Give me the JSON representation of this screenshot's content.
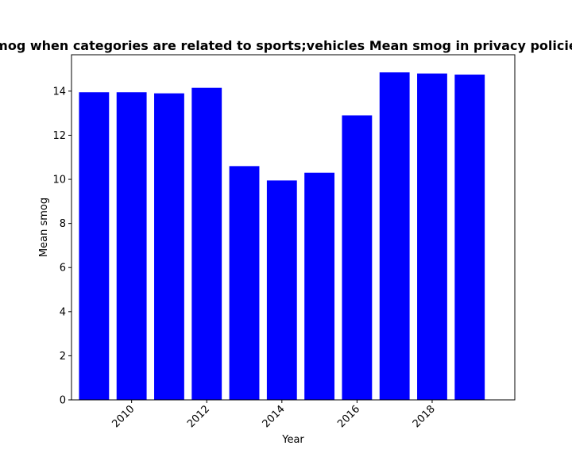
{
  "chart_data": {
    "type": "bar",
    "title": "Mean smog when categories are related to sports;vehicles Mean smog in privacy policies by Year",
    "xlabel": "Year",
    "ylabel": "Mean smog",
    "x": [
      2009,
      2010,
      2011,
      2012,
      2013,
      2014,
      2015,
      2016,
      2017,
      2018,
      2019
    ],
    "values": [
      13.95,
      13.95,
      13.9,
      14.15,
      10.6,
      9.95,
      10.3,
      12.9,
      14.85,
      14.8,
      14.75
    ],
    "xticks": [
      2010,
      2012,
      2014,
      2016,
      2018
    ],
    "yticks": [
      0,
      2,
      4,
      6,
      8,
      10,
      12,
      14
    ],
    "xlim": [
      2008.4,
      2020.2
    ],
    "ylim": [
      0,
      15.65
    ],
    "bar_color": "#0000ff",
    "grid": false,
    "legend": "none"
  }
}
